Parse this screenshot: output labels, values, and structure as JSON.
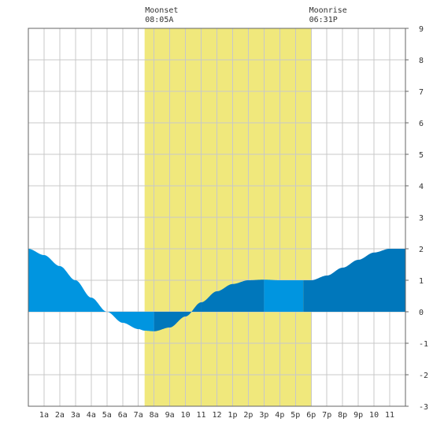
{
  "chart_data": {
    "type": "area",
    "title": "",
    "xlabel": "",
    "ylabel": "",
    "xlim": [
      0,
      24
    ],
    "ylim": [
      -3,
      9
    ],
    "grid": true,
    "x_tick_labels": [
      "1a",
      "2a",
      "3a",
      "4a",
      "5a",
      "6a",
      "7a",
      "8a",
      "9a",
      "10",
      "11",
      "12",
      "1p",
      "2p",
      "3p",
      "4p",
      "5p",
      "6p",
      "7p",
      "8p",
      "9p",
      "10",
      "11"
    ],
    "y_ticks": [
      -3,
      -2,
      -1,
      0,
      1,
      2,
      3,
      4,
      5,
      6,
      7,
      8,
      9
    ],
    "daylight_band": {
      "start_hour": 7.4,
      "end_hour": 18.0,
      "color": "#f0e87c"
    },
    "annotations": [
      {
        "label": "Moonset",
        "time": "08:05A",
        "hour": 8.08
      },
      {
        "label": "Moonrise",
        "time": "06:31P",
        "hour": 18.52
      }
    ],
    "series": [
      {
        "x": [
          0,
          1,
          2,
          3,
          4,
          5,
          6,
          7,
          7.4,
          8,
          9,
          10,
          11,
          12,
          13,
          14,
          15,
          16,
          17,
          18,
          19,
          20,
          21,
          22,
          23,
          24
        ],
        "y": [
          2.0,
          1.8,
          1.45,
          1.0,
          0.45,
          0.0,
          -0.35,
          -0.55,
          -0.6,
          -0.62,
          -0.5,
          -0.15,
          0.3,
          0.65,
          0.88,
          1.0,
          1.02,
          1.0,
          1.0,
          1.0,
          1.15,
          1.4,
          1.65,
          1.88,
          2.0,
          2.0
        ]
      }
    ],
    "colors": {
      "light": "#0095e0",
      "dark": "#0077bb",
      "grid": "#c8c8c8",
      "frame": "#666666"
    }
  }
}
